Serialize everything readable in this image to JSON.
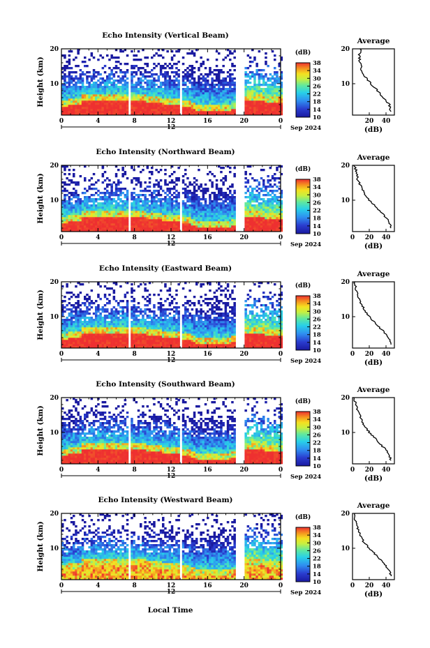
{
  "figure": {
    "xlabel": "Local Time",
    "date_label": "Sep 2024",
    "day_marker": "12",
    "colorbar_unit": "(dB)",
    "colorbar_ticks": [
      "10",
      "14",
      "18",
      "22",
      "26",
      "30",
      "34",
      "38"
    ],
    "avg_title": "Average",
    "avg_xlabel": "(dB)",
    "ylabel": "Height (km)"
  },
  "chart_data": [
    {
      "type": "heatmap",
      "title": "Echo Intensity (Vertical Beam)",
      "xlabel": "",
      "ylabel": "Height (km)",
      "x_ticks": [
        "0",
        "4",
        "8",
        "12",
        "16",
        "20",
        "0"
      ],
      "y_ticks": [
        "10",
        "20"
      ],
      "xlim": [
        0,
        24
      ],
      "ylim": [
        1,
        20
      ],
      "color_range_db": [
        10,
        38
      ],
      "data_gaps_hours": [
        [
          7.3,
          7.5
        ],
        [
          12.8,
          13.1
        ],
        [
          19.0,
          20.0
        ]
      ],
      "average_profile": {
        "title": "Average",
        "xlabel": "(dB)",
        "x_ticks": [
          "20",
          "40"
        ],
        "y_ticks": [
          "10",
          "20"
        ],
        "xlim": [
          0,
          50
        ],
        "height_km": [
          20,
          18,
          16,
          14,
          12,
          10,
          8,
          6,
          4,
          2
        ],
        "db": [
          10,
          8,
          9,
          11,
          15,
          22,
          30,
          37,
          44,
          46
        ]
      }
    },
    {
      "type": "heatmap",
      "title": "Echo Intensity (Northward Beam)",
      "xlabel": "",
      "ylabel": "Height (km)",
      "x_ticks": [
        "0",
        "4",
        "8",
        "12",
        "16",
        "20",
        "0"
      ],
      "y_ticks": [
        "10",
        "20"
      ],
      "xlim": [
        0,
        24
      ],
      "ylim": [
        1,
        20
      ],
      "color_range_db": [
        10,
        38
      ],
      "data_gaps_hours": [
        [
          7.3,
          7.5
        ],
        [
          12.8,
          13.1
        ],
        [
          19.0,
          20.0
        ]
      ],
      "average_profile": {
        "title": "Average",
        "xlabel": "(dB)",
        "x_ticks": [
          "0",
          "20",
          "40"
        ],
        "y_ticks": [
          "10",
          "20"
        ],
        "xlim": [
          0,
          50
        ],
        "height_km": [
          20,
          18,
          16,
          14,
          12,
          10,
          8,
          6,
          4,
          2
        ],
        "db": [
          2,
          5,
          6,
          10,
          14,
          20,
          28,
          36,
          43,
          46
        ]
      }
    },
    {
      "type": "heatmap",
      "title": "Echo Intensity (Eastward Beam)",
      "xlabel": "",
      "ylabel": "Height (km)",
      "x_ticks": [
        "0",
        "4",
        "8",
        "12",
        "16",
        "20",
        "0"
      ],
      "y_ticks": [
        "10",
        "20"
      ],
      "xlim": [
        0,
        24
      ],
      "ylim": [
        1,
        20
      ],
      "color_range_db": [
        10,
        38
      ],
      "data_gaps_hours": [
        [
          7.3,
          7.5
        ],
        [
          12.8,
          13.1
        ],
        [
          19.0,
          20.0
        ]
      ],
      "average_profile": {
        "title": "Average",
        "xlabel": "(dB)",
        "x_ticks": [
          "0",
          "20",
          "40"
        ],
        "y_ticks": [
          "10",
          "20"
        ],
        "xlim": [
          0,
          50
        ],
        "height_km": [
          20,
          18,
          16,
          14,
          12,
          10,
          8,
          6,
          4,
          2
        ],
        "db": [
          2,
          4,
          6,
          10,
          14,
          20,
          28,
          36,
          43,
          46
        ]
      }
    },
    {
      "type": "heatmap",
      "title": "Echo Intensity (Southward Beam)",
      "xlabel": "",
      "ylabel": "Height (km)",
      "x_ticks": [
        "0",
        "4",
        "8",
        "12",
        "16",
        "20",
        "0"
      ],
      "y_ticks": [
        "10",
        "20"
      ],
      "xlim": [
        0,
        24
      ],
      "ylim": [
        1,
        20
      ],
      "color_range_db": [
        10,
        38
      ],
      "data_gaps_hours": [
        [
          7.3,
          7.5
        ],
        [
          12.8,
          13.1
        ],
        [
          19.0,
          20.0
        ]
      ],
      "average_profile": {
        "title": "Average",
        "xlabel": "(dB)",
        "x_ticks": [
          "0",
          "20",
          "40"
        ],
        "y_ticks": [
          "10",
          "20"
        ],
        "xlim": [
          0,
          50
        ],
        "height_km": [
          20,
          18,
          16,
          14,
          12,
          10,
          8,
          6,
          4,
          2
        ],
        "db": [
          2,
          4,
          7,
          10,
          14,
          20,
          28,
          36,
          43,
          46
        ]
      }
    },
    {
      "type": "heatmap",
      "title": "Echo Intensity (Westward Beam)",
      "xlabel": "Local Time",
      "ylabel": "Height (km)",
      "x_ticks": [
        "0",
        "4",
        "8",
        "12",
        "16",
        "20",
        "0"
      ],
      "y_ticks": [
        "10",
        "20"
      ],
      "xlim": [
        0,
        24
      ],
      "ylim": [
        1,
        20
      ],
      "color_range_db": [
        10,
        38
      ],
      "data_gaps_hours": [
        [
          7.3,
          7.5
        ],
        [
          12.8,
          13.1
        ],
        [
          19.0,
          20.0
        ]
      ],
      "average_profile": {
        "title": "Average",
        "xlabel": "(dB)",
        "x_ticks": [
          "0",
          "20",
          "40"
        ],
        "y_ticks": [
          "10",
          "20"
        ],
        "xlim": [
          0,
          50
        ],
        "height_km": [
          20,
          18,
          16,
          14,
          12,
          10,
          8,
          6,
          4,
          2
        ],
        "db": [
          2,
          3,
          6,
          9,
          13,
          20,
          28,
          36,
          43,
          46
        ]
      }
    }
  ]
}
